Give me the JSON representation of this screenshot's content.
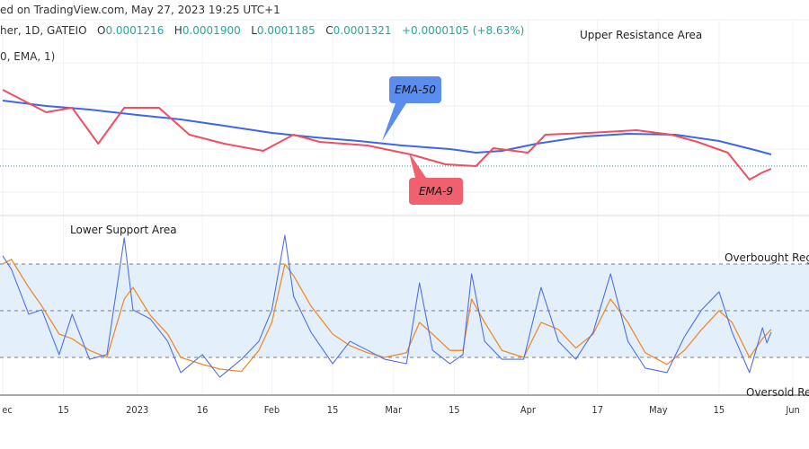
{
  "header": {
    "published": "ed on TradingView.com, May 27, 2023 19:25 UTC+1",
    "symbol": "her, 1D, GATEIO",
    "open_label": "O",
    "open": "0.0001216",
    "high_label": "H",
    "high": "0.0001900",
    "low_label": "L",
    "low": "0.0001185",
    "close_label": "C",
    "close": "0.0001321",
    "change": "+0.0000105 (+8.63%)",
    "indicator": "0, EMA, 1)"
  },
  "annotations": {
    "upper": "Upper Resistance Area",
    "lower": "Lower Support Area",
    "overbought": "Overbought Regio",
    "oversold": "Oversold Regi",
    "ema50": "EMA-50",
    "ema9": "EMA-9"
  },
  "colors": {
    "ema50": "#3d66e8",
    "ema9": "#ef4f5f",
    "rsi": "#4f6fe8",
    "rsi_ma": "#f08a2c",
    "band": "#e3f0fc",
    "up": "#26a69a",
    "callout50": "#5b8def",
    "callout9": "#f0606e"
  },
  "chart_data": [
    {
      "type": "line",
      "panel": "price",
      "title": "",
      "grid": true,
      "last_close": 0.0001321,
      "series": [
        {
          "name": "EMA-50",
          "x": [
            "2022-12-01",
            "2022-12-11",
            "2022-12-21",
            "2023-01-01",
            "2023-01-11",
            "2023-01-21",
            "2023-02-01",
            "2023-02-11",
            "2023-02-21",
            "2023-03-03",
            "2023-03-14",
            "2023-03-20",
            "2023-03-26",
            "2023-04-03",
            "2023-04-14",
            "2023-04-24",
            "2023-05-05",
            "2023-05-15",
            "2023-05-24",
            "2023-05-27"
          ],
          "values": [
            0.0002197,
            0.0002125,
            0.0002077,
            0.0002005,
            0.0001945,
            0.0001861,
            0.0001765,
            0.0001705,
            0.0001657,
            0.0001597,
            0.0001549,
            0.0001501,
            0.0001525,
            0.0001621,
            0.0001717,
            0.0001753,
            0.0001741,
            0.0001657,
            0.0001525,
            0.0001477
          ]
        },
        {
          "name": "EMA-9",
          "x": [
            "2022-12-01",
            "2022-12-05",
            "2022-12-11",
            "2022-12-17",
            "2022-12-23",
            "2022-12-29",
            "2023-01-06",
            "2023-01-13",
            "2023-01-21",
            "2023-01-30",
            "2023-02-06",
            "2023-02-12",
            "2023-02-23",
            "2023-03-05",
            "2023-03-13",
            "2023-03-20",
            "2023-03-24",
            "2023-04-01",
            "2023-04-05",
            "2023-04-15",
            "2023-04-26",
            "2023-05-04",
            "2023-05-10",
            "2023-05-17",
            "2023-05-22",
            "2023-05-25",
            "2023-05-27"
          ],
          "values": [
            0.0002341,
            0.0002221,
            0.0002041,
            0.0002101,
            0.0001621,
            0.0002101,
            0.0002101,
            0.0001741,
            0.0001621,
            0.0001525,
            0.0001741,
            0.0001645,
            0.0001597,
            0.0001477,
            0.0001345,
            0.0001321,
            0.0001561,
            0.0001501,
            0.0001741,
            0.0001765,
            0.0001801,
            0.0001741,
            0.0001645,
            0.0001501,
            0.0001141,
            0.0001237,
            0.0001285
          ]
        }
      ]
    },
    {
      "type": "line",
      "panel": "oscillator",
      "ylim": [
        0,
        100
      ],
      "levels": [
        70,
        50,
        30
      ],
      "x_ticks": [
        "ec",
        "15",
        "2023",
        "16",
        "Feb",
        "15",
        "Mar",
        "15",
        "Apr",
        "17",
        "May",
        "15",
        "Jun"
      ],
      "x_tick_dates": [
        "2022-12-01",
        "2022-12-15",
        "2023-01-01",
        "2023-01-16",
        "2023-02-01",
        "2023-02-15",
        "2023-03-01",
        "2023-03-15",
        "2023-04-01",
        "2023-04-17",
        "2023-05-01",
        "2023-05-15",
        "2023-06-01"
      ],
      "x": [
        "2022-12-01",
        "2022-12-03",
        "2022-12-07",
        "2022-12-10",
        "2022-12-14",
        "2022-12-17",
        "2022-12-21",
        "2022-12-25",
        "2022-12-29",
        "2022-12-31",
        "2023-01-04",
        "2023-01-08",
        "2023-01-11",
        "2023-01-16",
        "2023-01-20",
        "2023-01-25",
        "2023-01-29",
        "2023-02-01",
        "2023-02-04",
        "2023-02-06",
        "2023-02-10",
        "2023-02-15",
        "2023-02-19",
        "2023-02-23",
        "2023-02-27",
        "2023-03-04",
        "2023-03-07",
        "2023-03-10",
        "2023-03-14",
        "2023-03-17",
        "2023-03-19",
        "2023-03-22",
        "2023-03-26",
        "2023-03-31",
        "2023-04-04",
        "2023-04-08",
        "2023-04-12",
        "2023-04-16",
        "2023-04-20",
        "2023-04-24",
        "2023-04-28",
        "2023-05-03",
        "2023-05-07",
        "2023-05-11",
        "2023-05-15",
        "2023-05-18",
        "2023-05-22",
        "2023-05-25",
        "2023-05-26",
        "2023-05-27"
      ],
      "series": [
        {
          "values": [
            73.5,
            67.7,
            48.5,
            50.4,
            31.2,
            48.5,
            29.2,
            31.2,
            81.2,
            50.4,
            46.5,
            36.9,
            23.5,
            31.2,
            21.5,
            29.2,
            36.9,
            50.4,
            82.3,
            56.2,
            40.8,
            27.3,
            36.9,
            33.1,
            29.2,
            27.3,
            61.9,
            33.1,
            27.3,
            31.2,
            65.8,
            36.9,
            29.2,
            29.2,
            60.0,
            36.9,
            29.2,
            40.8,
            65.8,
            36.9,
            25.4,
            23.5,
            38.8,
            50.4,
            58.1,
            40.8,
            23.5,
            42.7,
            36.2,
            40.8
          ]
        },
        {
          "values": [
            70,
            72,
            60,
            52,
            40,
            38,
            33,
            30,
            55,
            60,
            48,
            40,
            30,
            27,
            25,
            24,
            33,
            45,
            70,
            65,
            52,
            40,
            35,
            32,
            30,
            32,
            45,
            40,
            33,
            33,
            55,
            45,
            33,
            30,
            45,
            42,
            34,
            40,
            55,
            45,
            32,
            27,
            33,
            42,
            50,
            45,
            30,
            38,
            40,
            42
          ]
        }
      ]
    }
  ]
}
